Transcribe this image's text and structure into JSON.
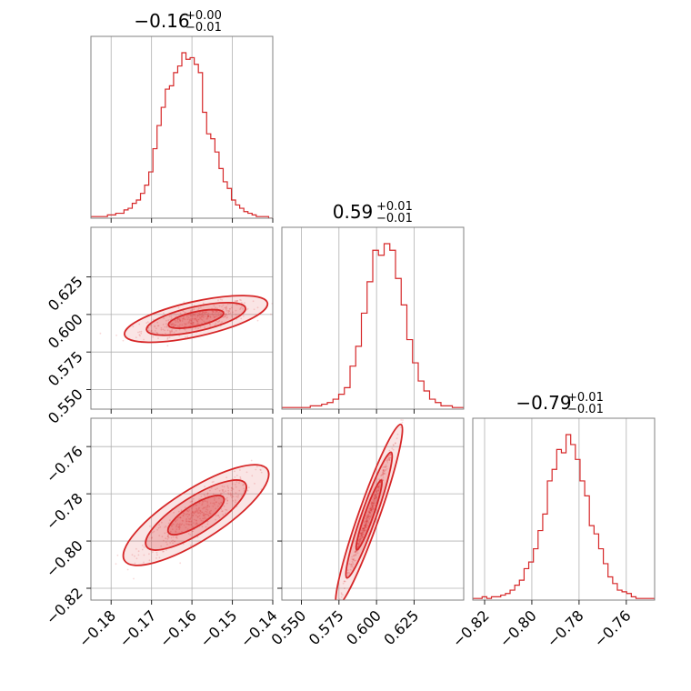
{
  "chart_data": {
    "type": "corner",
    "color": "#d62728",
    "grid": true,
    "parameters": [
      {
        "title_value": "−0.16",
        "title_plus": "+0.00",
        "title_minus": "−0.01",
        "range": [
          -0.185,
          -0.14
        ],
        "ticks": [
          -0.18,
          -0.17,
          -0.16,
          -0.15,
          -0.14
        ],
        "tick_labels": [
          "−0.18",
          "−0.17",
          "−0.16",
          "−0.15",
          "−0.14"
        ],
        "hist": [
          1,
          1,
          1,
          1,
          2,
          2,
          3,
          3,
          5,
          6,
          9,
          11,
          15,
          20,
          28,
          42,
          56,
          67,
          78,
          80,
          88,
          92,
          100,
          96,
          97,
          93,
          88,
          64,
          51,
          48,
          40,
          30,
          22,
          18,
          11,
          8,
          6,
          4,
          3,
          2,
          1,
          1,
          1,
          0
        ]
      },
      {
        "title_value": "0.59",
        "title_plus": "+0.01",
        "title_minus": "−0.01",
        "range": [
          0.537,
          0.658
        ],
        "ticks": [
          0.55,
          0.575,
          0.6,
          0.625
        ],
        "tick_labels": [
          "0.550",
          "0.575",
          "0.600",
          "0.625"
        ],
        "hist": [
          1,
          1,
          1,
          1,
          1,
          2,
          2,
          3,
          4,
          6,
          9,
          13,
          26,
          38,
          58,
          77,
          96,
          93,
          100,
          96,
          79,
          63,
          42,
          28,
          17,
          11,
          6,
          4,
          2,
          2,
          1,
          1
        ]
      },
      {
        "title_value": "−0.79",
        "title_plus": "+0.01",
        "title_minus": "−0.01",
        "range": [
          -0.825,
          -0.748
        ],
        "ticks": [
          -0.82,
          -0.8,
          -0.78,
          -0.76
        ],
        "tick_labels": [
          "−0.82",
          "−0.80",
          "−0.78",
          "−0.76"
        ],
        "hist": [
          1,
          1,
          2,
          1,
          2,
          2,
          3,
          4,
          6,
          9,
          12,
          19,
          23,
          31,
          42,
          52,
          72,
          79,
          91,
          89,
          100,
          94,
          85,
          72,
          63,
          45,
          40,
          31,
          22,
          14,
          10,
          6,
          5,
          4,
          2,
          1,
          1,
          1,
          1
        ]
      }
    ],
    "pairs": [
      {
        "row": 1,
        "col": 0,
        "slope": 0.6,
        "spread": 0.0025,
        "center": [
          -0.159,
          0.597
        ]
      },
      {
        "row": 2,
        "col": 0,
        "slope": 1.09,
        "spread": 0.0025,
        "center": [
          -0.159,
          -0.789
        ]
      },
      {
        "row": 2,
        "col": 1,
        "slope": 1.81,
        "spread": 0.0008,
        "center": [
          0.595,
          -0.789
        ]
      }
    ]
  }
}
